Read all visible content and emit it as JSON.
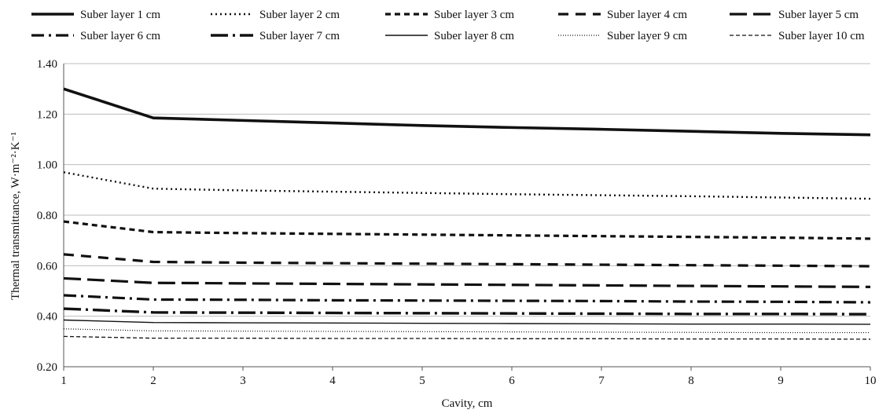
{
  "chart_data": {
    "type": "line",
    "title": "",
    "xlabel": "Cavity, cm",
    "ylabel": "Thermal transmittance, W·m⁻²·K⁻¹",
    "x": [
      1,
      2,
      3,
      4,
      5,
      6,
      7,
      8,
      9,
      10
    ],
    "x_ticks": [
      "1",
      "2",
      "3",
      "4",
      "5",
      "6",
      "7",
      "8",
      "9",
      "10"
    ],
    "xlim": [
      1,
      10
    ],
    "ylim": [
      0.2,
      1.4
    ],
    "y_ticks": [
      "0.20",
      "0.40",
      "0.60",
      "0.80",
      "1.00",
      "1.20",
      "1.40"
    ],
    "y_tick_values": [
      0.2,
      0.4,
      0.6,
      0.8,
      1.0,
      1.2,
      1.4
    ],
    "grid": "horizontal",
    "legend_position": "top",
    "series": [
      {
        "name": "Suber layer 1 cm",
        "style": "solid-thick",
        "values": [
          1.3,
          1.185,
          1.175,
          1.165,
          1.155,
          1.147,
          1.14,
          1.132,
          1.124,
          1.118
        ]
      },
      {
        "name": "Suber layer 2 cm",
        "style": "dotted",
        "values": [
          0.97,
          0.905,
          0.898,
          0.893,
          0.888,
          0.883,
          0.879,
          0.875,
          0.87,
          0.865
        ]
      },
      {
        "name": "Suber layer 3 cm",
        "style": "short-dash",
        "values": [
          0.775,
          0.733,
          0.729,
          0.726,
          0.723,
          0.72,
          0.717,
          0.714,
          0.711,
          0.707
        ]
      },
      {
        "name": "Suber layer 4 cm",
        "style": "dash",
        "values": [
          0.645,
          0.615,
          0.612,
          0.61,
          0.608,
          0.606,
          0.604,
          0.602,
          0.6,
          0.598
        ]
      },
      {
        "name": "Suber layer 5 cm",
        "style": "long-dash",
        "values": [
          0.55,
          0.532,
          0.53,
          0.528,
          0.526,
          0.524,
          0.522,
          0.52,
          0.518,
          0.516
        ]
      },
      {
        "name": "Suber layer 6 cm",
        "style": "dash-dot",
        "values": [
          0.483,
          0.466,
          0.465,
          0.463,
          0.462,
          0.461,
          0.46,
          0.458,
          0.457,
          0.455
        ]
      },
      {
        "name": "Suber layer 7 cm",
        "style": "long-dash-dot",
        "values": [
          0.43,
          0.415,
          0.414,
          0.413,
          0.412,
          0.411,
          0.41,
          0.409,
          0.409,
          0.408
        ]
      },
      {
        "name": "Suber layer 8 cm",
        "style": "solid-thin",
        "values": [
          0.385,
          0.375,
          0.374,
          0.373,
          0.372,
          0.371,
          0.37,
          0.369,
          0.369,
          0.368
        ]
      },
      {
        "name": "Suber layer 9 cm",
        "style": "fine-dotted",
        "values": [
          0.35,
          0.342,
          0.341,
          0.34,
          0.339,
          0.338,
          0.337,
          0.336,
          0.335,
          0.335
        ]
      },
      {
        "name": "Suber layer 10 cm",
        "style": "fine-dash",
        "values": [
          0.32,
          0.313,
          0.313,
          0.312,
          0.312,
          0.311,
          0.311,
          0.31,
          0.31,
          0.309
        ]
      }
    ]
  }
}
